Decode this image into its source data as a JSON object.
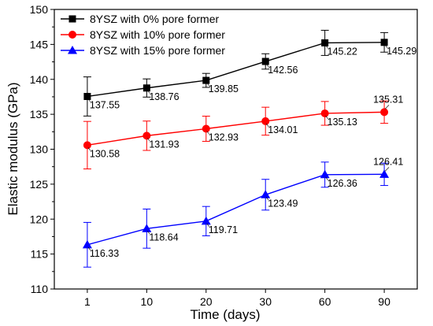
{
  "chart_data": {
    "type": "line",
    "xlabel": "Time (days)",
    "ylabel": "Elastic modulus (GPa)",
    "categories": [
      "1",
      "10",
      "20",
      "30",
      "60",
      "90"
    ],
    "ylim": [
      110,
      150
    ],
    "yticks": [
      110,
      115,
      120,
      125,
      130,
      135,
      140,
      145,
      150
    ],
    "legend_position": "top-left",
    "grid": false,
    "series": [
      {
        "name": "8YSZ with 0% pore former",
        "color": "#000000",
        "marker": "square",
        "values": [
          137.55,
          138.76,
          139.85,
          142.56,
          145.22,
          145.29
        ],
        "errors": [
          2.8,
          1.3,
          1.0,
          1.1,
          1.8,
          1.4
        ],
        "labels": [
          "137.55",
          "138.76",
          "139.85",
          "142.56",
          "145.22",
          "145.29"
        ]
      },
      {
        "name": "8YSZ with 10% pore former",
        "color": "#ff0000",
        "marker": "circle",
        "values": [
          130.58,
          131.93,
          132.93,
          134.01,
          135.13,
          135.31
        ],
        "errors": [
          3.4,
          2.1,
          1.8,
          2.0,
          1.7,
          1.6
        ],
        "labels": [
          "130.58",
          "131.93",
          "132.93",
          "134.01",
          "135.13",
          "135.31"
        ]
      },
      {
        "name": "8YSZ with 15% pore former",
        "color": "#0000ff",
        "marker": "triangle",
        "values": [
          116.33,
          118.64,
          119.71,
          123.49,
          126.36,
          126.41
        ],
        "errors": [
          3.2,
          2.8,
          2.1,
          2.2,
          1.8,
          1.6
        ],
        "labels": [
          "116.33",
          "118.64",
          "119.71",
          "123.49",
          "126.36",
          "126.41"
        ]
      }
    ]
  }
}
